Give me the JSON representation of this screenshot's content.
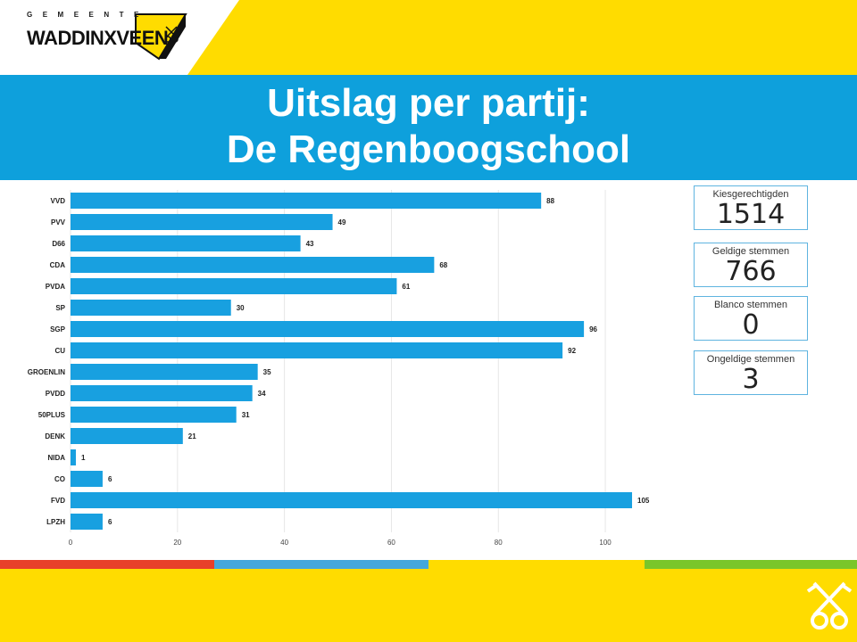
{
  "header": {
    "logo_small": "GEMEENTE",
    "logo_big": "WADDINXVEEN",
    "title_line1": "Uitslag per partij:",
    "title_line2": "De Regenboogschool"
  },
  "kpis": [
    {
      "label": "Kiesgerechtigden",
      "value": "1514"
    },
    {
      "label": "Geldige stemmen",
      "value": "766"
    },
    {
      "label": "Blanco stemmen",
      "value": "0"
    },
    {
      "label": "Ongeldige stemmen",
      "value": "3"
    }
  ],
  "colors": {
    "bar": "#18a0e0",
    "title_band": "#0ea0dc",
    "yellow": "#ffdc00",
    "stripe_red": "#e8402a",
    "stripe_blue": "#45a7dc",
    "stripe_yellow": "#ffdc00",
    "stripe_green": "#7ac62a"
  },
  "chart_data": {
    "type": "bar",
    "orientation": "horizontal",
    "categories": [
      "VVD",
      "PVV",
      "D66",
      "CDA",
      "PVDA",
      "SP",
      "SGP",
      "CU",
      "GROENLIN",
      "PVDD",
      "50PLUS",
      "DENK",
      "NIDA",
      "CO",
      "FVD",
      "LPZH"
    ],
    "values": [
      88,
      49,
      43,
      68,
      61,
      30,
      96,
      92,
      35,
      34,
      31,
      21,
      1,
      6,
      105,
      6
    ],
    "xticks": [
      0,
      20,
      40,
      60,
      80,
      100
    ],
    "xlim": [
      0,
      107
    ],
    "grid": true,
    "title": "",
    "xlabel": "",
    "ylabel": ""
  }
}
